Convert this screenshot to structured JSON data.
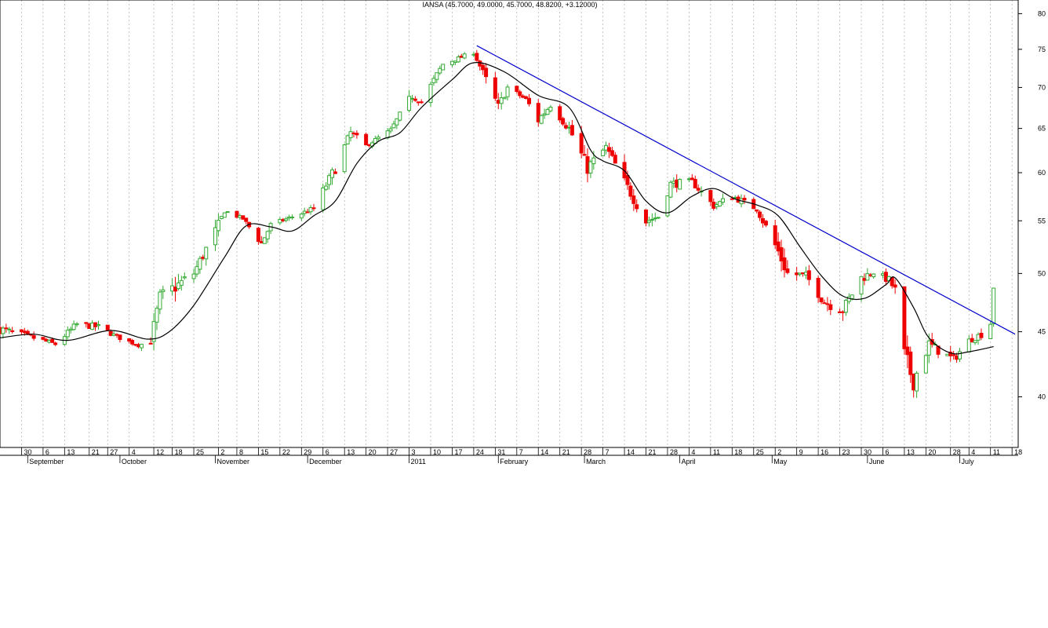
{
  "chart_data": {
    "type": "candlestick",
    "title": "IANSA (45.7000, 49.0000, 45.7000, 48.8200, +3.12000)",
    "y_scale": "log",
    "ylim": [
      36.5,
      82
    ],
    "y_ticks": [
      40,
      45,
      50,
      55,
      60,
      65,
      70,
      75,
      80
    ],
    "x_range": [
      "2010-08-23",
      "2011-07-20"
    ],
    "day_ticks": [
      {
        "date": "2010-08-30",
        "label": "30"
      },
      {
        "date": "2010-09-06",
        "label": "6"
      },
      {
        "date": "2010-09-13",
        "label": "13"
      },
      {
        "date": "2010-09-21",
        "label": "21"
      },
      {
        "date": "2010-09-27",
        "label": "27"
      },
      {
        "date": "2010-10-04",
        "label": "4"
      },
      {
        "date": "2010-10-12",
        "label": "12"
      },
      {
        "date": "2010-10-18",
        "label": "18"
      },
      {
        "date": "2010-10-25",
        "label": "25"
      },
      {
        "date": "2010-11-02",
        "label": "2"
      },
      {
        "date": "2010-11-08",
        "label": "8"
      },
      {
        "date": "2010-11-15",
        "label": "15"
      },
      {
        "date": "2010-11-22",
        "label": "22"
      },
      {
        "date": "2010-11-29",
        "label": "29"
      },
      {
        "date": "2010-12-06",
        "label": "6"
      },
      {
        "date": "2010-12-13",
        "label": "13"
      },
      {
        "date": "2010-12-20",
        "label": "20"
      },
      {
        "date": "2010-12-27",
        "label": "27"
      },
      {
        "date": "2011-01-03",
        "label": "3"
      },
      {
        "date": "2011-01-10",
        "label": "10"
      },
      {
        "date": "2011-01-17",
        "label": "17"
      },
      {
        "date": "2011-01-24",
        "label": "24"
      },
      {
        "date": "2011-01-31",
        "label": "31"
      },
      {
        "date": "2011-02-07",
        "label": "7"
      },
      {
        "date": "2011-02-14",
        "label": "14"
      },
      {
        "date": "2011-02-21",
        "label": "21"
      },
      {
        "date": "2011-02-28",
        "label": "28"
      },
      {
        "date": "2011-03-07",
        "label": "7"
      },
      {
        "date": "2011-03-14",
        "label": "14"
      },
      {
        "date": "2011-03-21",
        "label": "21"
      },
      {
        "date": "2011-03-28",
        "label": "28"
      },
      {
        "date": "2011-04-04",
        "label": "4"
      },
      {
        "date": "2011-04-11",
        "label": "11"
      },
      {
        "date": "2011-04-18",
        "label": "18"
      },
      {
        "date": "2011-04-25",
        "label": "25"
      },
      {
        "date": "2011-05-02",
        "label": "2"
      },
      {
        "date": "2011-05-09",
        "label": "9"
      },
      {
        "date": "2011-05-16",
        "label": "16"
      },
      {
        "date": "2011-05-23",
        "label": "23"
      },
      {
        "date": "2011-05-30",
        "label": "30"
      },
      {
        "date": "2011-06-06",
        "label": "6"
      },
      {
        "date": "2011-06-13",
        "label": "13"
      },
      {
        "date": "2011-06-20",
        "label": "20"
      },
      {
        "date": "2011-06-28",
        "label": "28"
      },
      {
        "date": "2011-07-04",
        "label": "4"
      },
      {
        "date": "2011-07-11",
        "label": "11"
      },
      {
        "date": "2011-07-18",
        "label": "18"
      }
    ],
    "month_labels": [
      {
        "date": "2010-09-01",
        "label": "September"
      },
      {
        "date": "2010-10-01",
        "label": "October"
      },
      {
        "date": "2010-11-01",
        "label": "November"
      },
      {
        "date": "2010-12-01",
        "label": "December"
      },
      {
        "date": "2011-01-03",
        "label": "2011"
      },
      {
        "date": "2011-02-01",
        "label": "February"
      },
      {
        "date": "2011-03-01",
        "label": "March"
      },
      {
        "date": "2011-04-01",
        "label": "April"
      },
      {
        "date": "2011-05-01",
        "label": "May"
      },
      {
        "date": "2011-06-01",
        "label": "June"
      },
      {
        "date": "2011-07-01",
        "label": "July"
      }
    ],
    "anchors": [
      [
        "2010-08-23",
        45.2,
        0.6
      ],
      [
        "2010-09-03",
        44.5,
        0.4
      ],
      [
        "2010-09-10",
        44.0,
        0.3
      ],
      [
        "2010-09-17",
        45.6,
        0.5
      ],
      [
        "2010-09-24",
        45.4,
        0.4
      ],
      [
        "2010-09-30",
        44.6,
        0.3
      ],
      [
        "2010-10-07",
        43.9,
        0.2
      ],
      [
        "2010-10-11",
        44.3,
        0.6
      ],
      [
        "2010-10-14",
        47.8,
        1.2
      ],
      [
        "2010-10-25",
        50.0,
        0.8
      ],
      [
        "2010-11-02",
        54.5,
        1.0
      ],
      [
        "2010-11-04",
        56.0,
        0.4
      ],
      [
        "2010-11-10",
        55.2,
        0.3
      ],
      [
        "2010-11-16",
        52.8,
        0.6
      ],
      [
        "2010-11-19",
        54.6,
        0.4
      ],
      [
        "2010-11-26",
        55.4,
        0.3
      ],
      [
        "2010-12-03",
        56.2,
        0.5
      ],
      [
        "2010-12-10",
        60.5,
        1.0
      ],
      [
        "2010-12-15",
        64.5,
        0.8
      ],
      [
        "2010-12-20",
        63.0,
        0.4
      ],
      [
        "2010-12-28",
        64.8,
        0.4
      ],
      [
        "2011-01-04",
        69.0,
        1.0
      ],
      [
        "2011-01-07",
        68.2,
        0.5
      ],
      [
        "2011-01-14",
        73.0,
        0.8
      ],
      [
        "2011-01-19",
        73.8,
        0.4
      ],
      [
        "2011-01-24",
        74.6,
        0.5
      ],
      [
        "2011-01-28",
        71.0,
        1.0
      ],
      [
        "2011-02-01",
        67.5,
        1.2
      ],
      [
        "2011-02-04",
        70.0,
        0.6
      ],
      [
        "2011-02-10",
        68.5,
        0.5
      ],
      [
        "2011-02-14",
        66.0,
        1.0
      ],
      [
        "2011-02-18",
        67.8,
        0.6
      ],
      [
        "2011-02-24",
        65.0,
        1.0
      ],
      [
        "2011-03-02",
        60.5,
        1.2
      ],
      [
        "2011-03-08",
        62.8,
        0.8
      ],
      [
        "2011-03-14",
        59.0,
        1.0
      ],
      [
        "2011-03-21",
        55.0,
        1.0
      ],
      [
        "2011-03-25",
        55.4,
        0.5
      ],
      [
        "2011-03-29",
        58.8,
        0.8
      ],
      [
        "2011-04-05",
        59.0,
        0.6
      ],
      [
        "2011-04-12",
        56.5,
        0.6
      ],
      [
        "2011-04-18",
        57.5,
        0.6
      ],
      [
        "2011-04-26",
        56.2,
        0.5
      ],
      [
        "2011-05-03",
        52.0,
        1.2
      ],
      [
        "2011-05-06",
        50.0,
        1.0
      ],
      [
        "2011-05-12",
        49.8,
        0.6
      ],
      [
        "2011-05-18",
        47.5,
        0.8
      ],
      [
        "2011-05-24",
        46.8,
        0.8
      ],
      [
        "2011-05-30",
        49.6,
        0.8
      ],
      [
        "2011-06-03",
        50.1,
        0.4
      ],
      [
        "2011-06-08",
        49.4,
        0.6
      ],
      [
        "2011-06-10",
        48.5,
        0.8
      ],
      [
        "2011-06-13",
        43.0,
        1.5
      ],
      [
        "2011-06-16",
        41.2,
        1.2
      ],
      [
        "2011-06-21",
        44.0,
        0.8
      ],
      [
        "2011-06-24",
        43.5,
        0.6
      ],
      [
        "2011-06-29",
        42.8,
        0.6
      ],
      [
        "2011-07-04",
        44.3,
        0.4
      ],
      [
        "2011-07-08",
        44.8,
        0.5
      ],
      [
        "2011-07-11",
        45.7,
        0.5
      ],
      [
        "2011-07-12",
        48.82,
        0.5
      ]
    ],
    "moving_average_anchors": [
      [
        "2010-08-23",
        44.5
      ],
      [
        "2010-09-03",
        44.8
      ],
      [
        "2010-09-14",
        44.3
      ],
      [
        "2010-09-28",
        45.1
      ],
      [
        "2010-10-10",
        44.4
      ],
      [
        "2010-10-17",
        45.0
      ],
      [
        "2010-10-25",
        47.2
      ],
      [
        "2010-11-04",
        51.5
      ],
      [
        "2010-11-11",
        54.5
      ],
      [
        "2010-11-19",
        54.4
      ],
      [
        "2010-11-26",
        54.0
      ],
      [
        "2010-12-03",
        55.5
      ],
      [
        "2010-12-10",
        57.0
      ],
      [
        "2010-12-17",
        61.0
      ],
      [
        "2010-12-24",
        63.5
      ],
      [
        "2010-12-31",
        64.5
      ],
      [
        "2011-01-07",
        67.5
      ],
      [
        "2011-01-17",
        71.0
      ],
      [
        "2011-01-24",
        73.2
      ],
      [
        "2011-02-03",
        72.0
      ],
      [
        "2011-02-14",
        69.0
      ],
      [
        "2011-02-24",
        67.5
      ],
      [
        "2011-03-03",
        62.5
      ],
      [
        "2011-03-07",
        61.3
      ],
      [
        "2011-03-14",
        60.2
      ],
      [
        "2011-03-21",
        57.0
      ],
      [
        "2011-03-28",
        55.8
      ],
      [
        "2011-04-05",
        57.5
      ],
      [
        "2011-04-12",
        58.3
      ],
      [
        "2011-04-19",
        57.2
      ],
      [
        "2011-04-26",
        56.6
      ],
      [
        "2011-05-03",
        55.5
      ],
      [
        "2011-05-10",
        52.5
      ],
      [
        "2011-05-17",
        49.8
      ],
      [
        "2011-05-24",
        48.0
      ],
      [
        "2011-05-31",
        47.8
      ],
      [
        "2011-06-07",
        49.0
      ],
      [
        "2011-06-10",
        49.6
      ],
      [
        "2011-06-16",
        47.0
      ],
      [
        "2011-06-21",
        44.5
      ],
      [
        "2011-06-28",
        43.3
      ],
      [
        "2011-07-04",
        43.4
      ],
      [
        "2011-07-12",
        43.8
      ]
    ],
    "trendline": {
      "start": [
        "2011-01-25",
        75.5
      ],
      "end": [
        "2011-07-19",
        44.8
      ]
    },
    "colors": {
      "up": "#33aa33",
      "down": "#ee0000",
      "ma": "#000000",
      "trend": "#0000cc",
      "grid": "#aaaaaa"
    }
  }
}
